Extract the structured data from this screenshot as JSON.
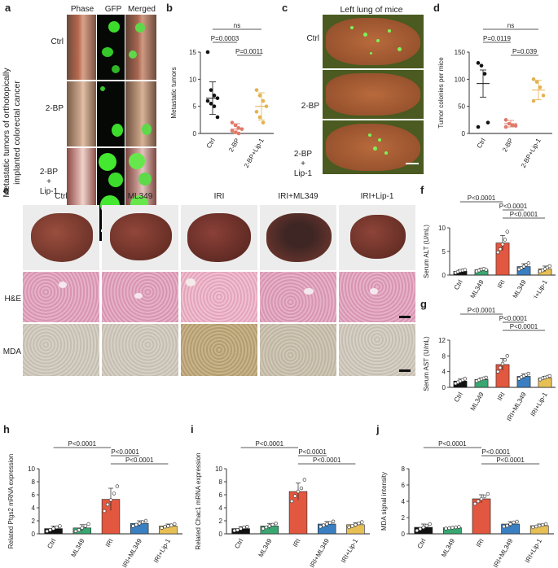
{
  "panels": {
    "a": {
      "letter": "a",
      "col_headers": [
        "Phase",
        "GFP",
        "Merged"
      ],
      "row_labels": [
        "Ctrl",
        "2-BP",
        "2-BP\n+\nLip-1"
      ],
      "side_title_1": "Metastatic tumors of orthotopically",
      "side_title_2": "implanted colorectal cancer"
    },
    "c": {
      "letter": "c",
      "title": "Left lung of mice",
      "row_labels": [
        "Ctrl",
        "2-BP",
        "2-BP\n+\nLip-1"
      ]
    },
    "e": {
      "letter": "e",
      "col_headers": [
        "Ctrl",
        "ML349",
        "IRI",
        "IRI+ML349",
        "IRI+Lip-1"
      ],
      "row_labels": [
        "H&E",
        "MDA"
      ]
    }
  },
  "colors": {
    "black": "#111111",
    "green": "#3aa772",
    "red": "#e2573f",
    "blue": "#3a7fc1",
    "yellow": "#e6bf55",
    "salmon": "#e07a6a",
    "gold": "#e4b24e"
  },
  "chart_data": [
    {
      "id": "b",
      "letter": "b",
      "type": "scatter",
      "ylabel": "Metastatic tumors",
      "ylim": [
        0,
        15
      ],
      "yticks": [
        0,
        5,
        10,
        15
      ],
      "categories": [
        "Ctrl",
        "2-BP",
        "2-BP+Lip-1"
      ],
      "series": [
        {
          "points": [
            15,
            8,
            7,
            6.5,
            6,
            5.5,
            5,
            3
          ]
        },
        {
          "points": [
            2,
            1.5,
            1,
            0.8,
            0.5,
            0.2,
            0
          ]
        },
        {
          "points": [
            8,
            7,
            6,
            5,
            4,
            3,
            2
          ]
        }
      ],
      "mean": [
        6.5,
        0.8,
        5
      ],
      "sd": [
        3,
        1,
        2.5
      ],
      "annotations": [
        {
          "from": 0,
          "to": 2,
          "text": "ns",
          "level": 0
        },
        {
          "from": 0,
          "to": 1,
          "text": "P=0.0003",
          "level": 1
        },
        {
          "from": 1,
          "to": 2,
          "text": "P=0.0011",
          "level": 2
        }
      ]
    },
    {
      "id": "d",
      "letter": "d",
      "type": "scatter",
      "ylabel": "Tumor colonies per mice",
      "ylim": [
        0,
        150
      ],
      "yticks": [
        0,
        50,
        100,
        150
      ],
      "categories": [
        "Ctrl",
        "2-BP",
        "2-BP+Lip-1"
      ],
      "series": [
        {
          "points": [
            130,
            125,
            110,
            20,
            12
          ]
        },
        {
          "points": [
            25,
            18,
            15,
            14,
            12
          ]
        },
        {
          "points": [
            100,
            95,
            85,
            70,
            60
          ]
        }
      ],
      "mean": [
        92,
        18,
        80
      ],
      "sd": [
        25,
        6,
        18
      ],
      "annotations": [
        {
          "from": 0,
          "to": 2,
          "text": "ns",
          "level": 0
        },
        {
          "from": 0,
          "to": 1,
          "text": "P=0.0119",
          "level": 1
        },
        {
          "from": 1,
          "to": 2,
          "text": "P=0.039",
          "level": 2
        }
      ]
    },
    {
      "id": "f",
      "letter": "f",
      "type": "bar",
      "ylabel": "Serum ALT (U/mL)",
      "ylim": [
        0,
        10
      ],
      "yticks": [
        0,
        5,
        10
      ],
      "categories": [
        "Ctrl",
        "ML349",
        "IRI",
        "IRI+ML349",
        "IRI+Lip-1"
      ],
      "values": [
        0.8,
        1.1,
        6.8,
        1.8,
        1.3
      ],
      "sd": [
        0.3,
        0.3,
        1.6,
        0.6,
        0.6
      ],
      "points": [
        [
          0.5,
          0.7,
          0.9,
          1.0,
          1.1
        ],
        [
          0.8,
          1.0,
          1.2,
          1.3,
          1.1
        ],
        [
          4.8,
          5.5,
          6.5,
          7.5,
          9.2
        ],
        [
          1.2,
          1.5,
          1.8,
          2.2,
          2.5
        ],
        [
          0.8,
          1.0,
          1.3,
          1.6,
          1.9
        ]
      ],
      "annotations": [
        {
          "from": 0,
          "to": 2,
          "text": "P<0.0001",
          "level": 0
        },
        {
          "from": 2,
          "to": 3,
          "text": "P<0.0001",
          "level": 1
        },
        {
          "from": 2,
          "to": 4,
          "text": "P<0.0001",
          "level": 2
        }
      ]
    },
    {
      "id": "g",
      "letter": "g",
      "type": "bar",
      "ylabel": "Serum AST (U/mL)",
      "ylim": [
        0,
        12
      ],
      "yticks": [
        0,
        4,
        8,
        12
      ],
      "categories": [
        "Ctrl",
        "ML349",
        "IRI",
        "IRI+ML349",
        "IRI+Lip-1"
      ],
      "values": [
        1.6,
        2.0,
        5.8,
        2.8,
        2.4
      ],
      "sd": [
        0.5,
        0.4,
        1.5,
        0.6,
        0.4
      ],
      "points": [
        [
          1.0,
          1.3,
          1.6,
          1.9,
          2.2
        ],
        [
          1.6,
          1.9,
          2.1,
          2.3,
          2.5
        ],
        [
          4.0,
          5.0,
          6.0,
          7.0,
          8.0
        ],
        [
          2.2,
          2.6,
          2.9,
          3.2,
          3.5
        ],
        [
          2.0,
          2.3,
          2.5,
          2.7,
          2.9
        ]
      ],
      "annotations": [
        {
          "from": 0,
          "to": 2,
          "text": "P<0.0001",
          "level": 0
        },
        {
          "from": 2,
          "to": 3,
          "text": "P<0.0001",
          "level": 1
        },
        {
          "from": 2,
          "to": 4,
          "text": "P<0.0001",
          "level": 2
        }
      ]
    },
    {
      "id": "h",
      "letter": "h",
      "type": "bar",
      "ylabel": "Related Ptgs2 mRNA expression",
      "ylim": [
        0,
        10
      ],
      "yticks": [
        0,
        2,
        4,
        6,
        8,
        10
      ],
      "categories": [
        "Ctrl",
        "ML349",
        "IRI",
        "IRI+ML349",
        "IRI+Lip-1"
      ],
      "values": [
        0.8,
        0.9,
        5.3,
        1.6,
        1.2
      ],
      "sd": [
        0.4,
        0.5,
        1.7,
        0.4,
        0.3
      ],
      "points": [
        [
          0.4,
          0.6,
          0.8,
          1.0,
          1.2
        ],
        [
          0.4,
          0.6,
          0.9,
          1.2,
          1.5
        ],
        [
          3.5,
          4.5,
          5.2,
          6.2,
          7.3
        ],
        [
          1.2,
          1.4,
          1.6,
          1.8,
          2.0
        ],
        [
          0.9,
          1.1,
          1.2,
          1.3,
          1.5
        ]
      ],
      "annotations": [
        {
          "from": 0,
          "to": 2,
          "text": "P<0.0001",
          "level": 0
        },
        {
          "from": 2,
          "to": 3,
          "text": "P<0.0001",
          "level": 1
        },
        {
          "from": 2,
          "to": 4,
          "text": "P<0.0001",
          "level": 2
        }
      ]
    },
    {
      "id": "i",
      "letter": "i",
      "type": "bar",
      "ylabel": "Related Chac1 mRNA expression",
      "ylim": [
        0,
        10
      ],
      "yticks": [
        0,
        2,
        4,
        6,
        8,
        10
      ],
      "categories": [
        "Ctrl",
        "ML349",
        "IRI",
        "IRI+ML349",
        "IRI+Lip-1"
      ],
      "values": [
        0.8,
        1.2,
        6.5,
        1.5,
        1.4
      ],
      "sd": [
        0.3,
        0.4,
        1.3,
        0.4,
        0.3
      ],
      "points": [
        [
          0.5,
          0.6,
          0.8,
          1.0,
          1.1
        ],
        [
          0.8,
          1.0,
          1.2,
          1.4,
          1.6
        ],
        [
          5.0,
          5.8,
          6.5,
          7.0,
          8.3
        ],
        [
          1.1,
          1.3,
          1.5,
          1.7,
          1.9
        ],
        [
          1.0,
          1.2,
          1.4,
          1.6,
          1.8
        ]
      ],
      "annotations": [
        {
          "from": 0,
          "to": 2,
          "text": "P<0.0001",
          "level": 0
        },
        {
          "from": 2,
          "to": 3,
          "text": "P<0.0001",
          "level": 1
        },
        {
          "from": 2,
          "to": 4,
          "text": "P<0.0001",
          "level": 2
        }
      ]
    },
    {
      "id": "j",
      "letter": "j",
      "type": "bar",
      "ylabel": "MDA signal intensity",
      "ylim": [
        0,
        8
      ],
      "yticks": [
        0,
        2,
        4,
        6,
        8
      ],
      "categories": [
        "Ctrl",
        "ML349",
        "IRI",
        "IRI+ML349",
        "IRI+Lip-1"
      ],
      "values": [
        0.8,
        0.75,
        4.3,
        1.2,
        1.0
      ],
      "sd": [
        0.4,
        0.1,
        0.5,
        0.3,
        0.2
      ],
      "points": [
        [
          0.4,
          0.6,
          0.8,
          1.0,
          1.2
        ],
        [
          0.65,
          0.7,
          0.75,
          0.8,
          0.85
        ],
        [
          3.7,
          4.0,
          4.3,
          4.6,
          4.9
        ],
        [
          0.9,
          1.0,
          1.2,
          1.4,
          1.5
        ],
        [
          0.8,
          0.9,
          1.0,
          1.1,
          1.2
        ]
      ],
      "annotations": [
        {
          "from": 0,
          "to": 2,
          "text": "P<0.0001",
          "level": 0
        },
        {
          "from": 2,
          "to": 3,
          "text": "P<0.0001",
          "level": 1
        },
        {
          "from": 2,
          "to": 4,
          "text": "P<0.0001",
          "level": 2
        }
      ]
    }
  ]
}
